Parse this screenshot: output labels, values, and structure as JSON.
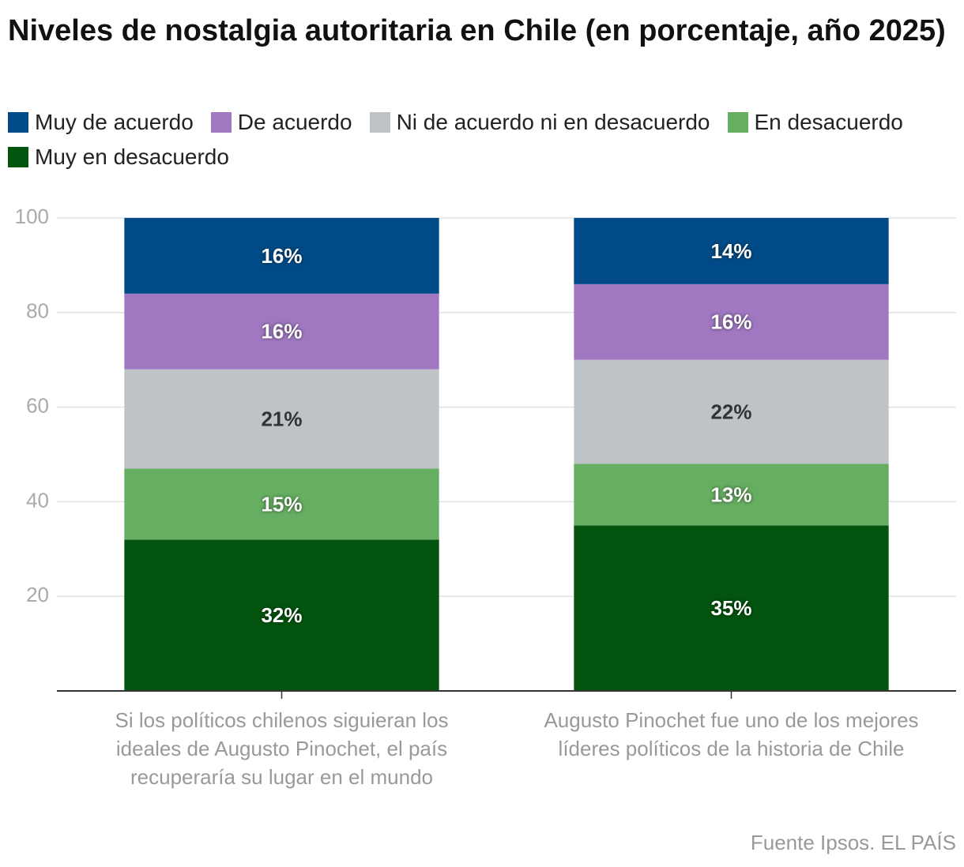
{
  "chart_data": {
    "type": "stacked_bar",
    "title": "Niveles de nostalgia autoritaria en Chile (en porcentaje, año 2025)",
    "categories": [
      "Si los políticos chilenos siguieran los ideales de Augusto Pinochet, el país recuperaría su lugar en el mundo",
      "Augusto Pinochet fue uno de los mejores líderes políticos de la historia de Chile"
    ],
    "series": [
      {
        "name": "Muy de acuerdo",
        "color": "#004b87",
        "values": [
          16,
          14
        ],
        "value_labels": [
          "16%",
          "14%"
        ]
      },
      {
        "name": "De acuerdo",
        "color": "#a078c2",
        "values": [
          16,
          16
        ],
        "value_labels": [
          "16%",
          "16%"
        ]
      },
      {
        "name": "Ni de acuerdo ni en desacuerdo",
        "color": "#bec3c7",
        "values": [
          21,
          22
        ],
        "value_labels": [
          "21%",
          "22%"
        ]
      },
      {
        "name": "En desacuerdo",
        "color": "#66ae62",
        "values": [
          15,
          13
        ],
        "value_labels": [
          "15%",
          "13%"
        ]
      },
      {
        "name": "Muy en desacuerdo",
        "color": "#03540f",
        "values": [
          32,
          35
        ],
        "value_labels": [
          "32%",
          "35%"
        ]
      }
    ],
    "ylim": [
      0,
      100
    ],
    "yticks": [
      20,
      40,
      60,
      80,
      100
    ],
    "grid": true,
    "source": "Fuente Ipsos. EL PAÍS"
  }
}
